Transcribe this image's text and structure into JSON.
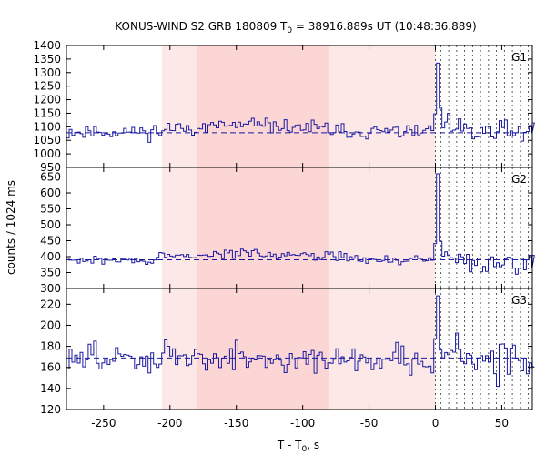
{
  "chart_data": {
    "type": "line",
    "title": {
      "prefix": "KONUS-WIND S2 GRB 180809 T",
      "subscript": "0",
      "suffix": " = 38916.889s UT (10:48:36.889)"
    },
    "xlabel": {
      "prefix": "T - T",
      "subscript": "0",
      "suffix": ", s"
    },
    "ylabel": "counts / 1024 ms",
    "xlim": [
      -278,
      73
    ],
    "x_ticks": [
      -250,
      -200,
      -150,
      -100,
      -50,
      0,
      50
    ],
    "x_tick_labels": [
      "-250",
      "-200",
      "-150",
      "-100",
      "-50",
      "0",
      "50"
    ],
    "regions": [
      {
        "name": "outer-interval",
        "x0": -206,
        "x1": 0,
        "color": "#fde8e8"
      },
      {
        "name": "inner-interval",
        "x0": -180,
        "x1": -80,
        "color": "#fcd5d5"
      }
    ],
    "dotted_lines_x": [
      0,
      4,
      10,
      16,
      22,
      28,
      34,
      40,
      46,
      52,
      58,
      64,
      70
    ],
    "series_color": "#1a1aa0",
    "panels": [
      {
        "name": "G1",
        "ylim": [
          950,
          1400
        ],
        "y_ticks": [
          950,
          1000,
          1050,
          1100,
          1150,
          1200,
          1250,
          1300,
          1350,
          1400
        ],
        "y_tick_labels": [
          "950",
          "1000",
          "1050",
          "1100",
          "1150",
          "1200",
          "1250",
          "1300",
          "1350",
          "1400"
        ],
        "background": 1078,
        "base": 1082,
        "noise": 13,
        "pre_start": -206,
        "pre_end": -80,
        "pre_level": 1107,
        "peak_x": 0.5,
        "peak": 1335,
        "post_level": 1078,
        "post_noise": 26,
        "seed": 11
      },
      {
        "name": "G2",
        "ylim": [
          300,
          680
        ],
        "y_ticks": [
          300,
          350,
          400,
          450,
          500,
          550,
          600,
          650
        ],
        "y_tick_labels": [
          "300",
          "350",
          "400",
          "450",
          "500",
          "550",
          "600",
          "650"
        ],
        "background": 390,
        "base": 388,
        "noise": 7,
        "pre_start": -210,
        "pre_end": -60,
        "pre_level": 412,
        "peak_x": 0.5,
        "peak": 660,
        "post_level": 385,
        "post_noise": 16,
        "seed": 29
      },
      {
        "name": "G3",
        "ylim": [
          120,
          235
        ],
        "y_ticks": [
          120,
          140,
          160,
          180,
          200,
          220
        ],
        "y_tick_labels": [
          "120",
          "140",
          "160",
          "180",
          "200",
          "220"
        ],
        "background": 169,
        "base": 168,
        "noise": 7,
        "pre_start": -215,
        "pre_end": -190,
        "pre_level": 175,
        "peak_x": 0.5,
        "peak": 228,
        "post_level": 168,
        "post_noise": 11,
        "seed": 47
      }
    ]
  }
}
